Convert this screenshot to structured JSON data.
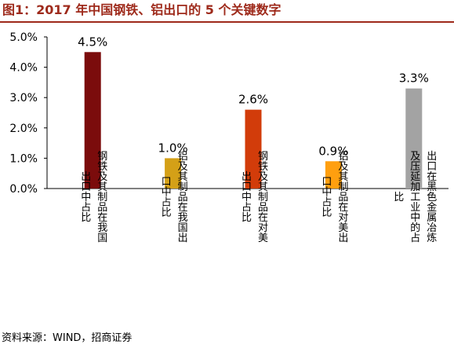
{
  "header": {
    "title": "图1：2017 年中国钢铁、铝出口的 5 个关键数字"
  },
  "footer": {
    "source": "资料来源：WIND，招商证券"
  },
  "chart_data": {
    "type": "bar",
    "ylim": [
      0,
      5
    ],
    "yticks": [
      "0.0%",
      "1.0%",
      "2.0%",
      "3.0%",
      "4.0%",
      "5.0%"
    ],
    "grid": false,
    "legend": "none",
    "categories": [
      [
        "钢铁及其制品在我国",
        "出口中占比"
      ],
      [
        "铝及其制品在我国出",
        "口中占比"
      ],
      [
        "钢铁及其制品在对美",
        "出口中占比"
      ],
      [
        "铝及其制品在对美出",
        "口中占比"
      ],
      [
        "出口在黑色金属冶炼",
        "及压延加工业中的占",
        "比"
      ]
    ],
    "values": [
      4.5,
      1.0,
      2.6,
      0.9,
      3.3
    ],
    "value_labels": [
      "4.5%",
      "1.0%",
      "2.6%",
      "0.9%",
      "3.3%"
    ],
    "colors": [
      "#7b0c0c",
      "#d4a017",
      "#d23c0a",
      "#ff9f0f",
      "#a3a3a3"
    ]
  }
}
